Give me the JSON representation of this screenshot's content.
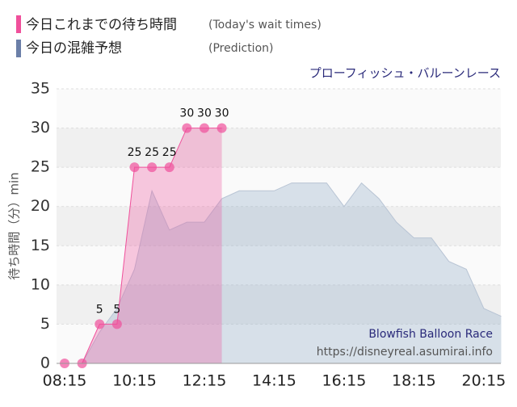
{
  "chart_data": {
    "type": "area",
    "title": "プローフィッシュ・バルーンレース",
    "y_label": "待ち時間（分）min",
    "watermark": [
      "Blowfish Balloon Race",
      "https://disneyreal.asumirai.info"
    ],
    "x": [
      "08:15",
      "08:45",
      "09:15",
      "09:45",
      "10:15",
      "10:45",
      "11:15",
      "11:45",
      "12:15",
      "12:45",
      "13:15",
      "13:45",
      "14:15",
      "14:45",
      "15:15",
      "15:45",
      "16:15",
      "16:45",
      "17:15",
      "17:45",
      "18:15",
      "18:45",
      "19:15",
      "19:45",
      "20:15",
      "20:45"
    ],
    "series": [
      {
        "name": "今日これまでの待ち時間",
        "note": "(Today's wait times)",
        "color": "#f0509b",
        "values": [
          0,
          0,
          5,
          5,
          25,
          25,
          25,
          30,
          30,
          30,
          null,
          null,
          null,
          null,
          null,
          null,
          null,
          null,
          null,
          null,
          null,
          null,
          null,
          null,
          null,
          null
        ]
      },
      {
        "name": "今日の混雑予想",
        "note": "(Prediction)",
        "color": "#6b7fa8",
        "values": [
          0,
          0,
          4,
          7,
          12,
          22,
          17,
          18,
          18,
          21,
          22,
          22,
          22,
          23,
          23,
          23,
          20,
          23,
          21,
          18,
          16,
          16,
          13,
          12,
          7,
          6
        ]
      }
    ],
    "ylim": [
      0,
      35
    ],
    "yticks": [
      0,
      5,
      10,
      15,
      20,
      25,
      30,
      35
    ],
    "grid": true
  }
}
